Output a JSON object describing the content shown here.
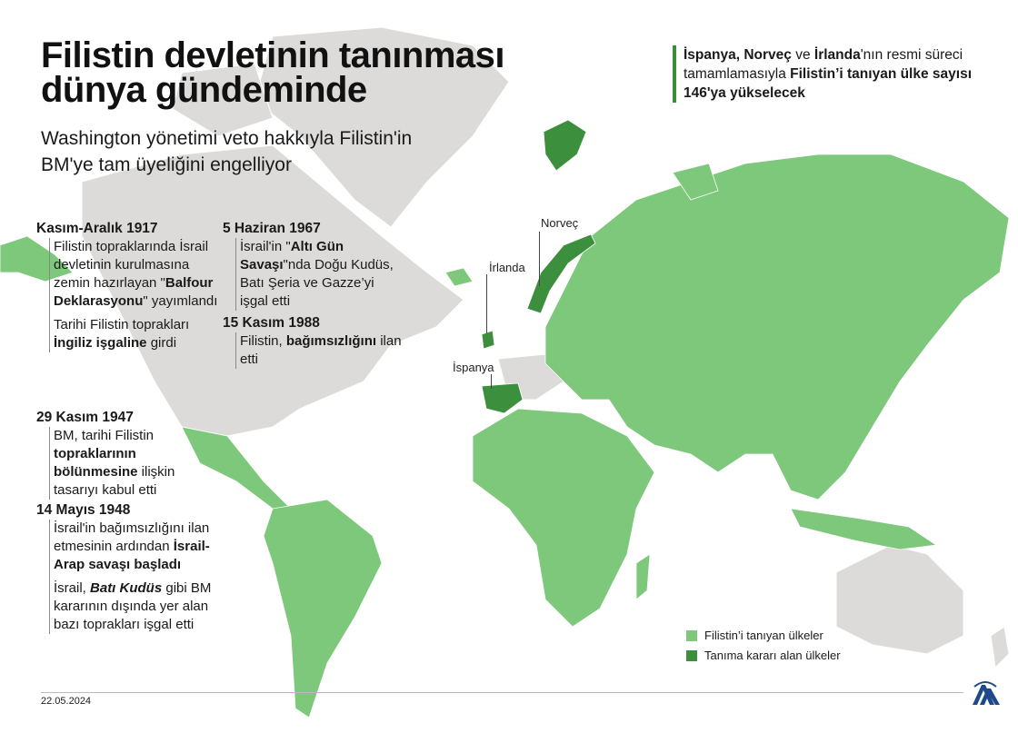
{
  "title_lines": [
    "Filistin devletinin tanınması",
    "dünya gündeminde"
  ],
  "subtitle_lines": [
    "Washington yönetimi veto hakkıyla Filistin'in",
    "BM'ye tam üyeliğini engelliyor"
  ],
  "note": [
    {
      "t": "İspanya, Norveç",
      "b": true
    },
    {
      "t": " ve ",
      "b": false
    },
    {
      "t": "İrlanda",
      "b": true
    },
    {
      "t": "'nın resmi süreci tamamlamasıyla ",
      "b": false
    },
    {
      "t": "Filistin’i tanıyan ülke sayısı 146'ya yükselecek",
      "b": true
    }
  ],
  "timeline": [
    {
      "heading": "Kasım-Aralık 1917",
      "paragraphs": [
        [
          {
            "t": "Filistin topraklarında İsrail devletinin kurulmasına zemin hazırlayan \"",
            "b": false
          },
          {
            "t": "Balfour Deklarasyonu",
            "b": true
          },
          {
            "t": "\" yayımlandı",
            "b": false
          }
        ],
        [
          {
            "t": "Tarihi Filistin toprakları ",
            "b": false
          },
          {
            "t": "İngiliz işgaline",
            "b": true
          },
          {
            "t": " girdi",
            "b": false
          }
        ]
      ]
    },
    {
      "heading": "29 Kasım 1947",
      "paragraphs": [
        [
          {
            "t": "BM, tarihi Filistin ",
            "b": false
          },
          {
            "t": "topraklarının bölünmesine",
            "b": true
          },
          {
            "t": " ilişkin tasarıyı kabul etti",
            "b": false
          }
        ]
      ]
    },
    {
      "heading": "14 Mayıs 1948",
      "paragraphs": [
        [
          {
            "t": "İsrail'in bağımsızlığını ilan etmesinin ardından ",
            "b": false
          },
          {
            "t": "İsrail-Arap savaşı başladı",
            "b": true
          }
        ],
        [
          {
            "t": "İsrail, ",
            "b": false
          },
          {
            "t": "Batı Kudüs",
            "b": true,
            "i": true
          },
          {
            "t": " gibi BM kararının dışında yer alan bazı toprakları işgal etti",
            "b": false
          }
        ]
      ]
    },
    {
      "heading": "5 Haziran 1967",
      "paragraphs": [
        [
          {
            "t": "İsrail'in \"",
            "b": false
          },
          {
            "t": "Altı Gün Savaşı",
            "b": true
          },
          {
            "t": "\"nda Doğu Kudüs, Batı Şeria ve Gazze’yi işgal etti",
            "b": false
          }
        ]
      ]
    },
    {
      "heading": "15 Kasım 1988",
      "paragraphs": [
        [
          {
            "t": "Filistin, ",
            "b": false
          },
          {
            "t": "bağımsızlığını",
            "b": true
          },
          {
            "t": " ilan etti",
            "b": false
          }
        ]
      ]
    }
  ],
  "map_labels": {
    "norway": "Norveç",
    "ireland": "İrlanda",
    "spain": "İspanya"
  },
  "legend": [
    {
      "label": "Filistin’i tanıyan ülkeler",
      "color": "#7dc87a"
    },
    {
      "label": "Tanıma kararı alan ülkeler",
      "color": "#3c8f3c"
    }
  ],
  "colors": {
    "recognized": "#7dc87a",
    "deciding": "#3c8f3c",
    "other": "#dcdbd9"
  },
  "date": "22.05.2024",
  "logo": "AA"
}
